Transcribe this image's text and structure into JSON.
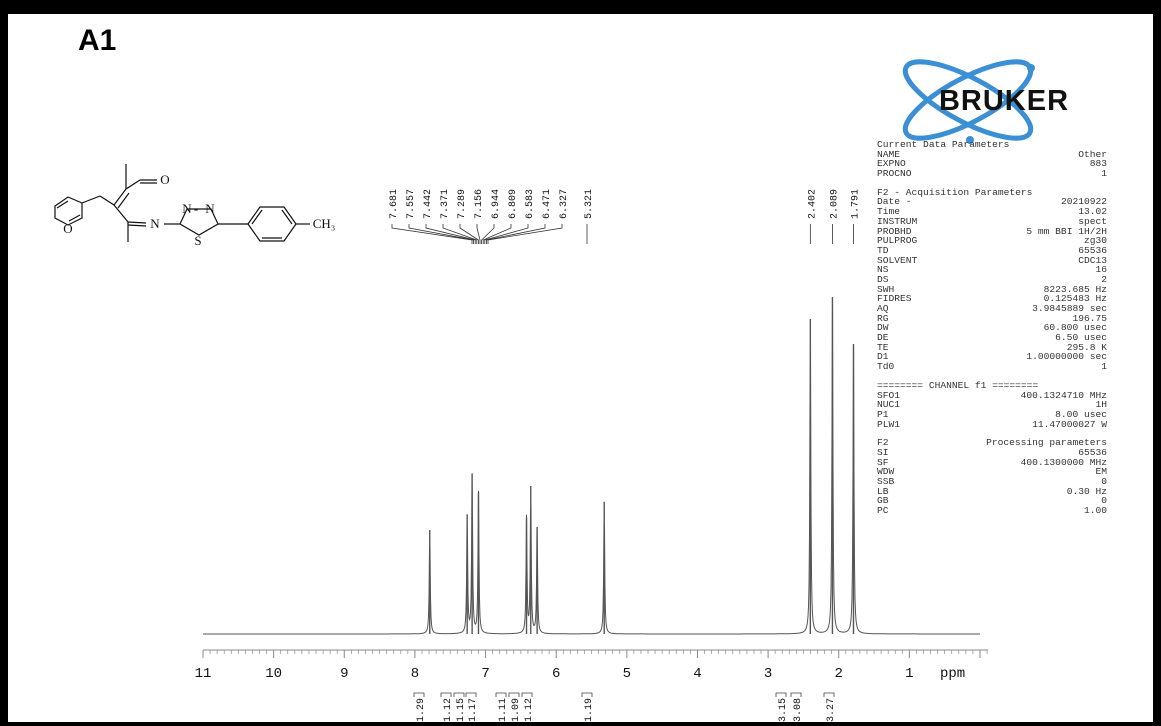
{
  "panel_label": "A1",
  "logo_text": "BRUKER",
  "structure_labels": {
    "o_carbonyl": "O",
    "n_imine": "N",
    "n1": "N",
    "dash": "-",
    "n2": "N",
    "s": "S",
    "o_furan": "O",
    "methyl": "CH₃"
  },
  "peak_labels": [
    "7.681",
    "7.557",
    "7.442",
    "7.371",
    "7.289",
    "7.156",
    "6.944",
    "6.809",
    "6.583",
    "6.471",
    "6.327",
    "5.321",
    "2.402",
    "2.089",
    "1.791"
  ],
  "integral_labels": [
    "1.29",
    "1.12",
    "1.15",
    "1.17",
    "1.11",
    "1.09",
    "1.12",
    "1.19",
    "3.15",
    "3.08",
    "3.27"
  ],
  "parameters": [
    {
      "type": "head",
      "text": "Current Data Parameters"
    },
    {
      "type": "row",
      "k": "NAME",
      "v": "Other"
    },
    {
      "type": "row",
      "k": "EXPNO",
      "v": "883"
    },
    {
      "type": "row",
      "k": "PROCNO",
      "v": "1"
    },
    {
      "type": "gap"
    },
    {
      "type": "head",
      "text": "F2 - Acquisition Parameters"
    },
    {
      "type": "row",
      "k": "Date -",
      "v": "20210922"
    },
    {
      "type": "row",
      "k": "Time",
      "v": "13.02"
    },
    {
      "type": "row",
      "k": "INSTRUM",
      "v": "spect"
    },
    {
      "type": "row",
      "k": "PROBHD",
      "v": "5 mm BBI 1H/2H"
    },
    {
      "type": "row",
      "k": "PULPROG",
      "v": "zg30"
    },
    {
      "type": "row",
      "k": "TD",
      "v": "65536"
    },
    {
      "type": "row",
      "k": "SOLVENT",
      "v": "CDC13"
    },
    {
      "type": "row",
      "k": "NS",
      "v": "16"
    },
    {
      "type": "row",
      "k": "DS",
      "v": "2"
    },
    {
      "type": "row",
      "k": "SWH",
      "v": "8223.685 Hz"
    },
    {
      "type": "row",
      "k": "FIDRES",
      "v": "0.125483 Hz"
    },
    {
      "type": "row",
      "k": "AQ",
      "v": "3.9845889 sec"
    },
    {
      "type": "row",
      "k": "RG",
      "v": "196.75"
    },
    {
      "type": "row",
      "k": "DW",
      "v": "60.800 usec"
    },
    {
      "type": "row",
      "k": "DE",
      "v": "6.50 usec"
    },
    {
      "type": "row",
      "k": "TE",
      "v": "295.8 K"
    },
    {
      "type": "row",
      "k": "D1",
      "v": "1.00000000 sec"
    },
    {
      "type": "row",
      "k": "Td0",
      "v": "1"
    },
    {
      "type": "gap"
    },
    {
      "type": "head",
      "text": "======== CHANNEL f1 ========"
    },
    {
      "type": "row",
      "k": "SFO1",
      "v": "400.1324710 MHz"
    },
    {
      "type": "row",
      "k": "NUC1",
      "v": "1H"
    },
    {
      "type": "row",
      "k": "P1",
      "v": "8.00 usec"
    },
    {
      "type": "row",
      "k": "PLW1",
      "v": "11.47000027 W"
    },
    {
      "type": "gap"
    },
    {
      "type": "row",
      "k": "F2",
      "v": "Processing parameters"
    },
    {
      "type": "row",
      "k": "SI",
      "v": "65536"
    },
    {
      "type": "row",
      "k": "SF",
      "v": "400.1300000 MHz"
    },
    {
      "type": "row",
      "k": "WDW",
      "v": "EM"
    },
    {
      "type": "row",
      "k": "SSB",
      "v": "0"
    },
    {
      "type": "row",
      "k": "LB",
      "v": "0.30 Hz"
    },
    {
      "type": "row",
      "k": "GB",
      "v": "0"
    },
    {
      "type": "row",
      "k": "PC",
      "v": "1.00"
    }
  ],
  "chart_data": {
    "type": "line",
    "xlabel": "ppm",
    "xlim": [
      11,
      0
    ],
    "x_reversed": true,
    "ticks": [
      "11",
      "10",
      "9",
      "8",
      "7",
      "6",
      "5",
      "4",
      "3",
      "2",
      "1"
    ],
    "tick_values": [
      11,
      10,
      9,
      8,
      7,
      6,
      5,
      4,
      3,
      2,
      1
    ],
    "peaks": [
      {
        "ppm": 7.79,
        "height": 0.33
      },
      {
        "ppm": 7.26,
        "height": 0.38
      },
      {
        "ppm": 7.19,
        "height": 0.51
      },
      {
        "ppm": 7.1,
        "height": 0.45
      },
      {
        "ppm": 6.42,
        "height": 0.37
      },
      {
        "ppm": 6.36,
        "height": 0.47
      },
      {
        "ppm": 6.27,
        "height": 0.34
      },
      {
        "ppm": 5.32,
        "height": 0.42
      },
      {
        "ppm": 2.402,
        "height": 1.0
      },
      {
        "ppm": 2.089,
        "height": 1.07
      },
      {
        "ppm": 1.791,
        "height": 0.92
      }
    ],
    "peak_label_values": [
      7.681,
      7.557,
      7.442,
      7.371,
      7.289,
      7.156,
      6.944,
      6.809,
      6.583,
      6.471,
      6.327,
      5.321,
      2.402,
      2.089,
      1.791
    ],
    "integrals": [
      {
        "ppm": 7.79,
        "value": 1.29
      },
      {
        "ppm": 7.3,
        "value": 1.12
      },
      {
        "ppm": 7.22,
        "value": 1.15
      },
      {
        "ppm": 7.12,
        "value": 1.17
      },
      {
        "ppm": 6.45,
        "value": 1.11
      },
      {
        "ppm": 6.36,
        "value": 1.09
      },
      {
        "ppm": 6.27,
        "value": 1.12
      },
      {
        "ppm": 5.32,
        "value": 1.19
      },
      {
        "ppm": 2.4,
        "value": 3.15
      },
      {
        "ppm": 2.09,
        "value": 3.08
      },
      {
        "ppm": 1.79,
        "value": 3.27
      }
    ]
  }
}
